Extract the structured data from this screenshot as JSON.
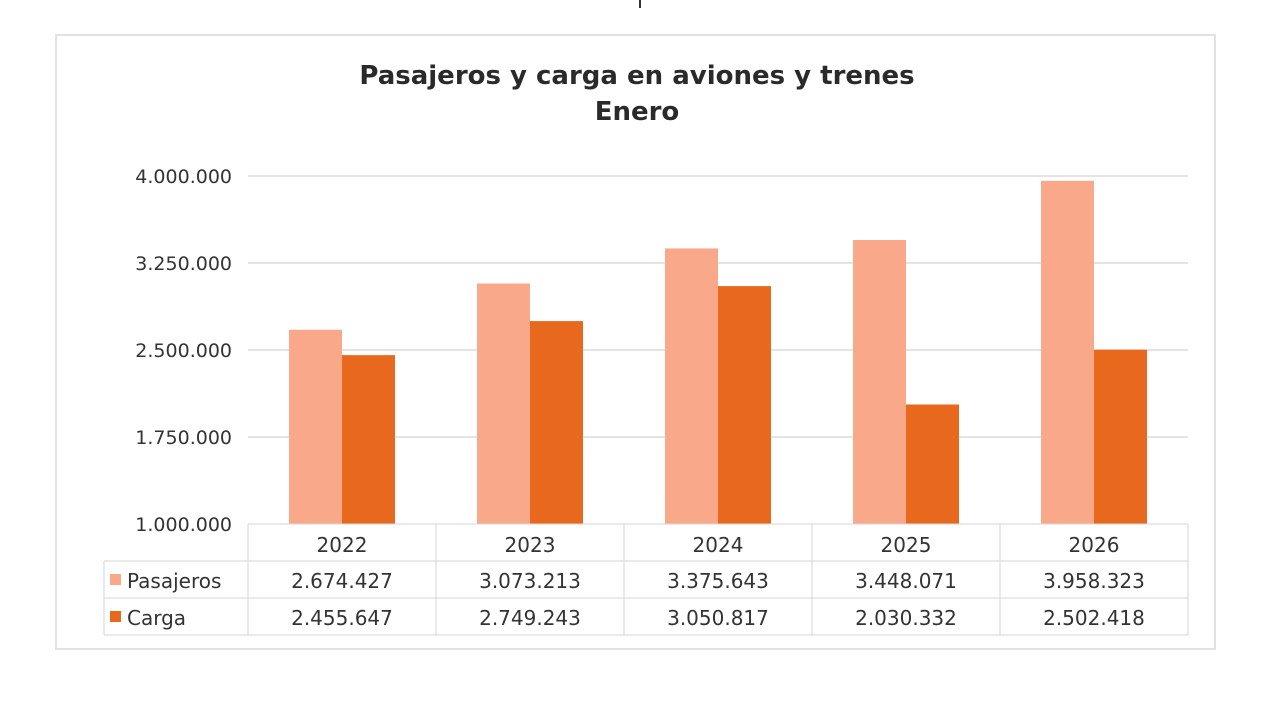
{
  "chart_data": {
    "type": "bar",
    "title": "Pasajeros y carga en aviones y trenes",
    "subtitle": "Enero",
    "categories": [
      "2022",
      "2023",
      "2024",
      "2025",
      "2026"
    ],
    "series": [
      {
        "name": "Pasajeros",
        "color": "#F9A98A",
        "values": [
          2674427,
          3073213,
          3375643,
          3448071,
          3958323
        ],
        "labels": [
          "2.674.427",
          "3.073.213",
          "3.375.643",
          "3.448.071",
          "3.958.323"
        ]
      },
      {
        "name": "Carga",
        "color": "#E8691E",
        "values": [
          2455647,
          2749243,
          3050817,
          2030332,
          2502418
        ],
        "labels": [
          "2.455.647",
          "2.749.243",
          "3.050.817",
          "2.030.332",
          "2.502.418"
        ]
      }
    ],
    "ylim": [
      1000000,
      4000000
    ],
    "yticks": [
      1000000,
      1750000,
      2500000,
      3250000,
      4000000
    ],
    "ytick_labels": [
      "1.000.000",
      "1.750.000",
      "2.500.000",
      "3.250.000",
      "4.000.000"
    ],
    "grid": true,
    "legend": "data-table"
  }
}
